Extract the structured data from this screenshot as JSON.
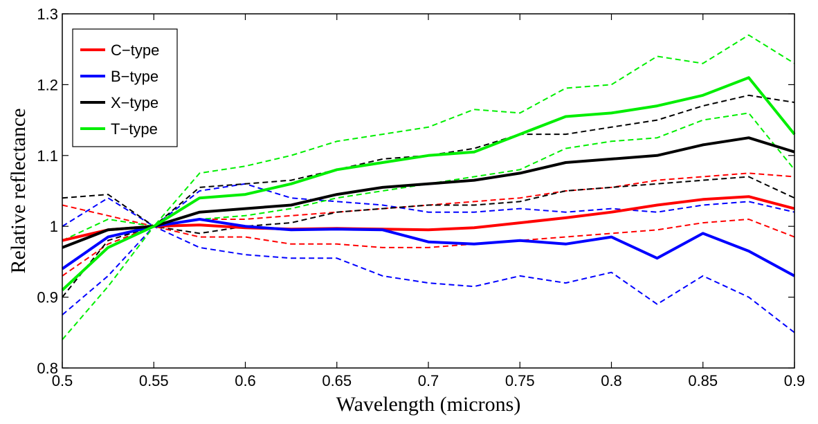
{
  "chart_data": {
    "type": "line",
    "title": "",
    "xlabel": "Wavelength (microns)",
    "ylabel": "Relative reflectance",
    "xlim": [
      0.5,
      0.9
    ],
    "ylim": [
      0.8,
      1.3
    ],
    "xticks": [
      0.5,
      0.55,
      0.6,
      0.65,
      0.7,
      0.75,
      0.8,
      0.85,
      0.9
    ],
    "xtick_labels": [
      "0.5",
      "0.55",
      "0.6",
      "0.65",
      "0.7",
      "0.75",
      "0.8",
      "0.85",
      "0.9"
    ],
    "yticks": [
      0.8,
      0.9,
      1.0,
      1.1,
      1.2,
      1.3
    ],
    "ytick_labels": [
      "0.8",
      "0.9",
      "1",
      "1.1",
      "1.2",
      "1.3"
    ],
    "grid": false,
    "legend_position": "top-left",
    "x": [
      0.5,
      0.525,
      0.55,
      0.575,
      0.6,
      0.625,
      0.65,
      0.675,
      0.7,
      0.725,
      0.75,
      0.775,
      0.8,
      0.825,
      0.85,
      0.875,
      0.9
    ],
    "series": [
      {
        "name": "C−type",
        "color": "#ff0000",
        "style": "solid",
        "values": [
          0.98,
          0.995,
          1.0,
          1.002,
          0.998,
          0.996,
          0.997,
          0.996,
          0.995,
          0.998,
          1.005,
          1.012,
          1.02,
          1.03,
          1.038,
          1.042,
          1.025
        ]
      },
      {
        "name": "B−type",
        "color": "#0000ff",
        "style": "solid",
        "values": [
          0.94,
          0.985,
          1.0,
          1.01,
          1.0,
          0.995,
          0.996,
          0.995,
          0.978,
          0.975,
          0.98,
          0.975,
          0.985,
          0.955,
          0.99,
          0.965,
          0.93
        ]
      },
      {
        "name": "X−type",
        "color": "#000000",
        "style": "solid",
        "values": [
          0.97,
          0.995,
          1.0,
          1.02,
          1.025,
          1.03,
          1.045,
          1.055,
          1.06,
          1.065,
          1.075,
          1.09,
          1.095,
          1.1,
          1.115,
          1.125,
          1.105
        ]
      },
      {
        "name": "T−type",
        "color": "#00ee00",
        "style": "solid",
        "values": [
          0.91,
          0.97,
          1.0,
          1.04,
          1.045,
          1.06,
          1.08,
          1.09,
          1.1,
          1.105,
          1.13,
          1.155,
          1.16,
          1.17,
          1.185,
          1.21,
          1.13
        ]
      },
      {
        "name": "",
        "color": "#ff0000",
        "style": "dashed",
        "values": [
          1.03,
          1.015,
          1.0,
          1.01,
          1.01,
          1.015,
          1.02,
          1.025,
          1.03,
          1.035,
          1.04,
          1.05,
          1.055,
          1.065,
          1.07,
          1.075,
          1.07
        ]
      },
      {
        "name": "",
        "color": "#ff0000",
        "style": "dashed",
        "values": [
          0.93,
          0.975,
          1.0,
          0.985,
          0.985,
          0.975,
          0.975,
          0.97,
          0.97,
          0.975,
          0.98,
          0.985,
          0.99,
          0.995,
          1.005,
          1.01,
          0.985
        ]
      },
      {
        "name": "",
        "color": "#0000ff",
        "style": "dashed",
        "values": [
          1.0,
          1.04,
          1.0,
          1.05,
          1.06,
          1.04,
          1.035,
          1.03,
          1.02,
          1.02,
          1.025,
          1.02,
          1.025,
          1.02,
          1.03,
          1.035,
          1.02
        ]
      },
      {
        "name": "",
        "color": "#0000ff",
        "style": "dashed",
        "values": [
          0.875,
          0.93,
          1.0,
          0.97,
          0.96,
          0.955,
          0.955,
          0.93,
          0.92,
          0.915,
          0.93,
          0.92,
          0.935,
          0.89,
          0.93,
          0.9,
          0.85
        ]
      },
      {
        "name": "",
        "color": "#000000",
        "style": "dashed",
        "values": [
          1.04,
          1.045,
          1.0,
          1.055,
          1.06,
          1.065,
          1.08,
          1.095,
          1.1,
          1.11,
          1.13,
          1.13,
          1.14,
          1.15,
          1.17,
          1.185,
          1.175
        ]
      },
      {
        "name": "",
        "color": "#000000",
        "style": "dashed",
        "values": [
          0.9,
          0.98,
          1.0,
          0.99,
          1.0,
          1.005,
          1.02,
          1.025,
          1.03,
          1.03,
          1.035,
          1.05,
          1.055,
          1.06,
          1.065,
          1.07,
          1.04
        ]
      },
      {
        "name": "",
        "color": "#00ee00",
        "style": "dashed",
        "values": [
          0.98,
          1.01,
          1.0,
          1.075,
          1.085,
          1.1,
          1.12,
          1.13,
          1.14,
          1.165,
          1.16,
          1.195,
          1.2,
          1.24,
          1.23,
          1.27,
          1.23
        ]
      },
      {
        "name": "",
        "color": "#00ee00",
        "style": "dashed",
        "values": [
          0.84,
          0.915,
          1.0,
          1.01,
          1.015,
          1.025,
          1.04,
          1.05,
          1.06,
          1.07,
          1.08,
          1.11,
          1.12,
          1.125,
          1.15,
          1.16,
          1.08
        ]
      }
    ]
  }
}
